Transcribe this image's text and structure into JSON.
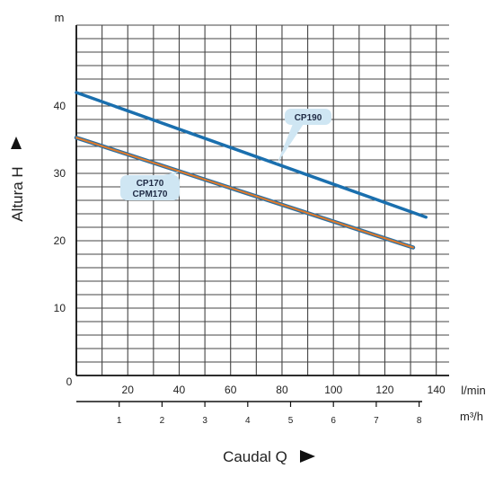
{
  "chart_data": {
    "type": "line",
    "ylabel": "Altura  H",
    "yunit": "m",
    "xlabel": "Caudal  Q",
    "xunit_primary": "l/min",
    "xunit_secondary": "m³/h",
    "origin_label": "0",
    "xlim": [
      0,
      145
    ],
    "ylim": [
      0,
      52
    ],
    "x_ticks": [
      20,
      40,
      60,
      80,
      100,
      120,
      140
    ],
    "y_ticks": [
      10,
      20,
      30,
      40
    ],
    "x2_ticks": [
      1,
      2,
      3,
      4,
      5,
      6,
      7,
      8
    ],
    "x2_unit_factor": 16.6667,
    "grid": true,
    "series": [
      {
        "name": "CP190",
        "labels": [
          "CP190"
        ],
        "color": "#1a6fae",
        "x": [
          0,
          136
        ],
        "y": [
          42.0,
          23.5
        ]
      },
      {
        "name": "CP170",
        "labels": [
          "CP170",
          "CPM170"
        ],
        "color": "#e07a2a",
        "outline": "#2c6fa0",
        "x": [
          0,
          131
        ],
        "y": [
          35.3,
          19.0
        ]
      }
    ]
  }
}
